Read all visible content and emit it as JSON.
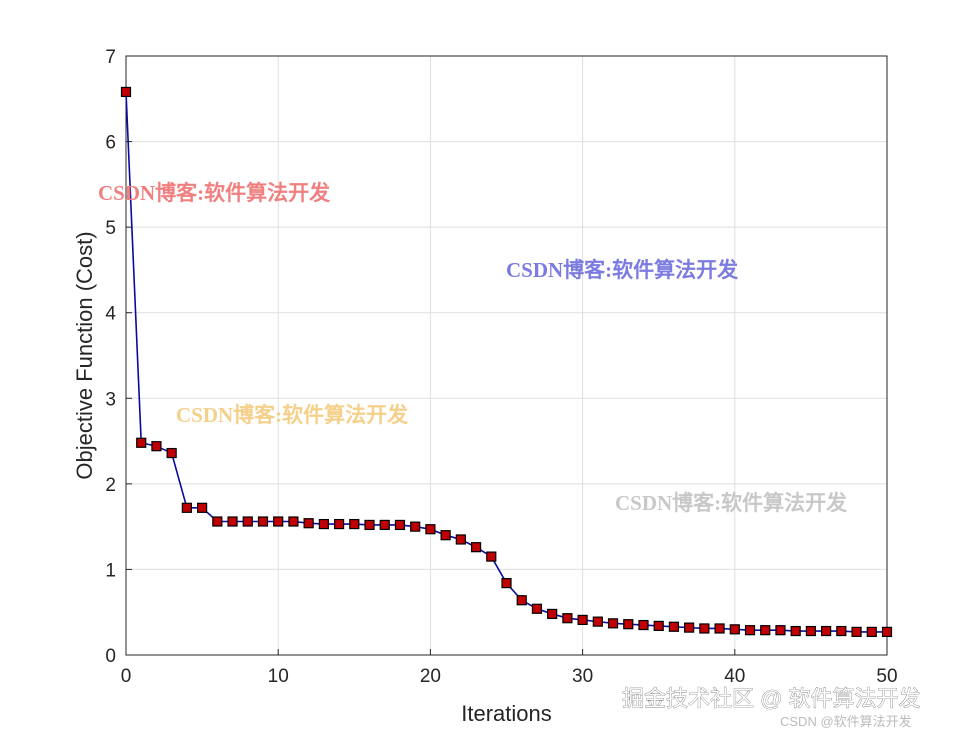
{
  "chart_data": {
    "type": "line",
    "xlabel": "Iterations",
    "ylabel": "Objective Function (Cost)",
    "x": [
      0,
      1,
      2,
      3,
      4,
      5,
      6,
      7,
      8,
      9,
      10,
      11,
      12,
      13,
      14,
      15,
      16,
      17,
      18,
      19,
      20,
      21,
      22,
      23,
      24,
      25,
      26,
      27,
      28,
      29,
      30,
      31,
      32,
      33,
      34,
      35,
      36,
      37,
      38,
      39,
      40,
      41,
      42,
      43,
      44,
      45,
      46,
      47,
      48,
      49,
      50
    ],
    "series": [
      {
        "color": "#0a0aa0",
        "marker_color": "#c00000",
        "values": [
          6.58,
          2.48,
          2.44,
          2.36,
          1.72,
          1.72,
          1.56,
          1.56,
          1.56,
          1.56,
          1.56,
          1.56,
          1.54,
          1.53,
          1.53,
          1.53,
          1.52,
          1.52,
          1.52,
          1.5,
          1.47,
          1.4,
          1.35,
          1.26,
          1.15,
          0.84,
          0.64,
          0.54,
          0.48,
          0.43,
          0.41,
          0.39,
          0.37,
          0.36,
          0.35,
          0.34,
          0.33,
          0.32,
          0.31,
          0.31,
          0.3,
          0.29,
          0.29,
          0.29,
          0.28,
          0.28,
          0.28,
          0.28,
          0.27,
          0.27,
          0.27
        ]
      }
    ],
    "xlim": [
      0,
      50
    ],
    "xticks": [
      0,
      10,
      20,
      30,
      40,
      50
    ],
    "ylim": [
      0,
      7
    ],
    "yticks": [
      0,
      1,
      2,
      3,
      4,
      5,
      6,
      7
    ],
    "grid": true,
    "annotations": [
      {
        "text": "CSDN博客:软件算法开发",
        "color": "#f08080"
      },
      {
        "text": "CSDN博客:软件算法开发",
        "color": "#7b7be0"
      },
      {
        "text": "CSDN博客:软件算法开发",
        "color": "#f5d08a"
      },
      {
        "text": "CSDN博客:软件算法开发",
        "color": "#c8c8c8"
      },
      {
        "text": "掘金技术社区 @ 软件算法开发",
        "color": "#ffffff"
      },
      {
        "text": "CSDN @软件算法开发",
        "color": "#bbbbbb"
      }
    ]
  }
}
